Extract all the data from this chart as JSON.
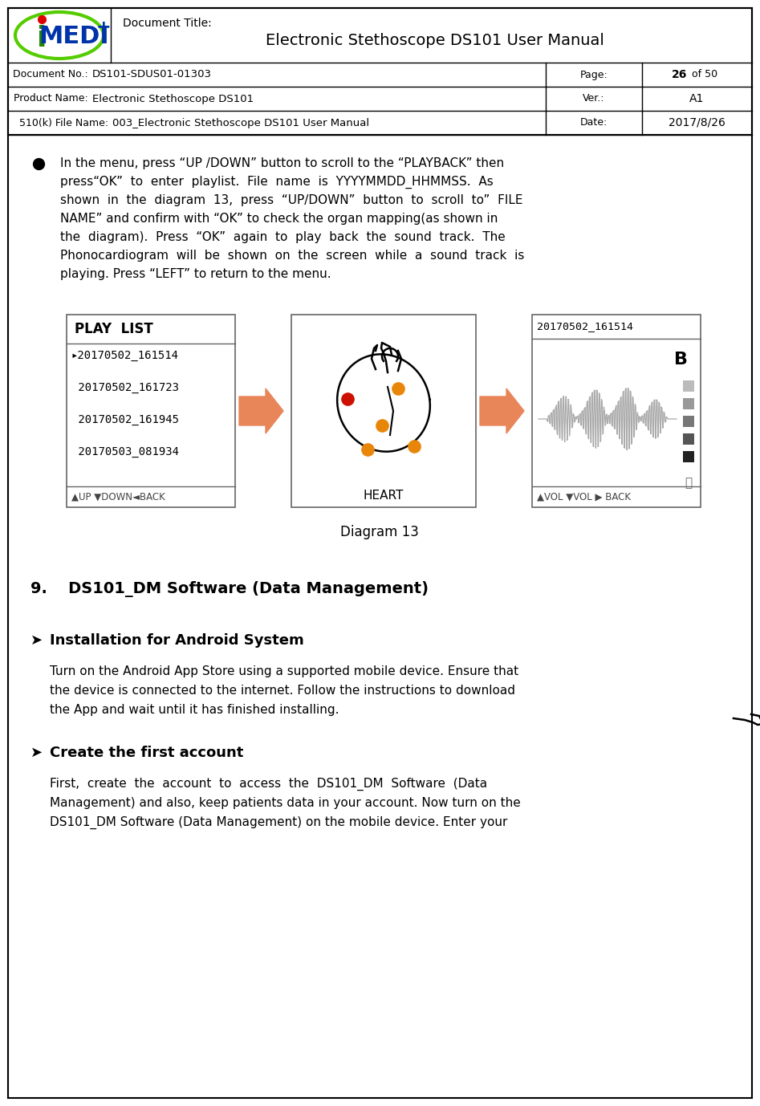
{
  "page_bg": "#ffffff",
  "header": {
    "doc_title_label": "Document Title:",
    "doc_title": "Electronic Stethoscope DS101 User Manual",
    "rows": [
      {
        "label": "Document No.:",
        "value": "DS101-SDUS01-01303",
        "right_label": "Page:",
        "right_value_bold": "26",
        "right_value_normal": " of 50"
      },
      {
        "label": "Product Name:",
        "value": "Electronic Stethoscope DS101",
        "right_label": "Ver.:",
        "right_value": "A1"
      },
      {
        "label": "510(k) File Name:",
        "value": "003_Electronic Stethoscope DS101 User Manual",
        "right_label": "Date:",
        "right_value": "2017/8/26"
      }
    ]
  },
  "bullet_lines": [
    "In the menu, press “UP /DOWN” button to scroll to the “PLAYBACK” then",
    "press“OK”  to  enter  playlist.  File  name  is  YYYYMMDD_HHMMSS.  As",
    "shown  in  the  diagram  13,  press  “UP/DOWN”  button  to  scroll  to”  FILE",
    "NAME” and confirm with “OK” to check the organ mapping(as shown in",
    "the  diagram).  Press  “OK”  again  to  play  back  the  sound  track.  The",
    "Phonocardiogram  will  be  shown  on  the  screen  while  a  sound  track  is",
    "playing. Press “LEFT” to return to the menu."
  ],
  "diagram_label": "Diagram 13",
  "playlist": [
    "20170502_161514",
    "20170502_161723",
    "20170502_161945",
    "20170503_081934"
  ],
  "playback_title": "20170502_161514",
  "section9_title": "9.  DS101_DM Software (Data Management)",
  "subsection1_title": "Installation for Android System",
  "subsection1_lines": [
    "Turn on the Android App Store using a supported mobile device. Ensure that",
    "the device is connected to the internet. Follow the instructions to download",
    "the App and wait until it has finished installing."
  ],
  "subsection2_title": "Create the first account",
  "subsection2_lines": [
    "First,  create  the  account  to  access  the  DS101_DM  Software  (Data",
    "Management) and also, keep patients data in your account. Now turn on the",
    "DS101_DM Software (Data Management) on the mobile device. Enter your"
  ],
  "arrow_color": "#E8865A",
  "panel_border": "#888888",
  "vol_bar_colors": [
    "#bbbbbb",
    "#999999",
    "#777777",
    "#555555",
    "#222222"
  ]
}
